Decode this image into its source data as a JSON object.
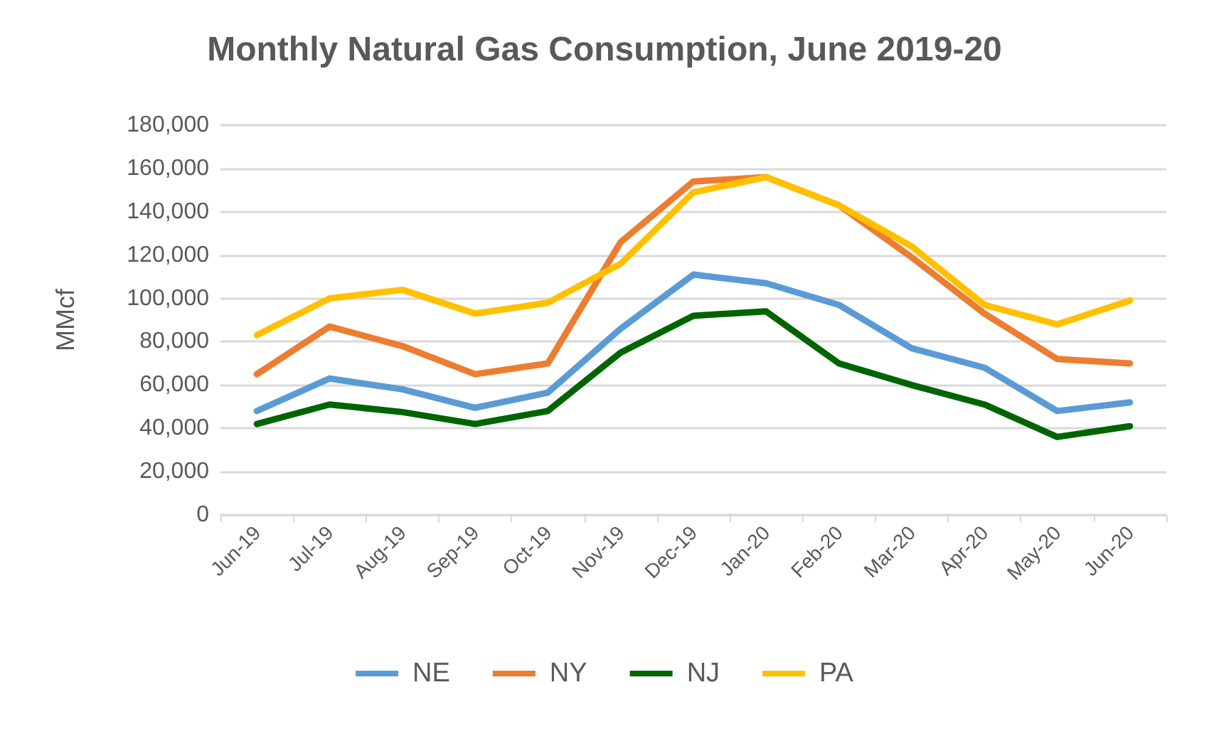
{
  "chart_data": {
    "type": "line",
    "title": "Monthly Natural Gas Consumption, June 2019-20",
    "ylabel": "MMcf",
    "categories": [
      "Jun-19",
      "Jul-19",
      "Aug-19",
      "Sep-19",
      "Oct-19",
      "Nov-19",
      "Dec-19",
      "Jan-20",
      "Feb-20",
      "Mar-20",
      "Apr-20",
      "May-20",
      "Jun-20"
    ],
    "series": [
      {
        "name": "NE",
        "color": "#5b9bd5",
        "values": [
          48000,
          63000,
          58000,
          49500,
          56500,
          86000,
          111000,
          107000,
          97000,
          77000,
          68000,
          48000,
          52000
        ]
      },
      {
        "name": "NY",
        "color": "#ed7d31",
        "values": [
          65000,
          87000,
          78000,
          65000,
          70000,
          126000,
          154000,
          156000,
          143000,
          119000,
          93000,
          72000,
          70000
        ]
      },
      {
        "name": "NJ",
        "color": "#006400",
        "values": [
          42000,
          51000,
          47500,
          42000,
          48000,
          75000,
          92000,
          94000,
          70000,
          60000,
          51000,
          36000,
          41000
        ]
      },
      {
        "name": "PA",
        "color": "#ffc000",
        "values": [
          83000,
          100000,
          104000,
          93000,
          98000,
          116000,
          149000,
          156000,
          143000,
          124000,
          97000,
          88000,
          99000
        ]
      }
    ],
    "ylim": [
      0,
      180000
    ],
    "yticks": [
      0,
      {
        "value": 20000,
        "label": "20,000"
      },
      {
        "value": 40000,
        "label": "40,000"
      },
      {
        "value": 60000,
        "label": "60,000"
      },
      {
        "value": 80000,
        "label": "80,000"
      },
      {
        "value": 100000,
        "label": "100,000"
      },
      {
        "value": 120000,
        "label": "120,000"
      },
      {
        "value": 140000,
        "label": "140,000"
      },
      {
        "value": 160000,
        "label": "160,000"
      },
      {
        "value": 180000,
        "label": "180,000"
      }
    ],
    "grid": "y",
    "legend": "bottom",
    "marker": "none",
    "line_style": "solid"
  }
}
